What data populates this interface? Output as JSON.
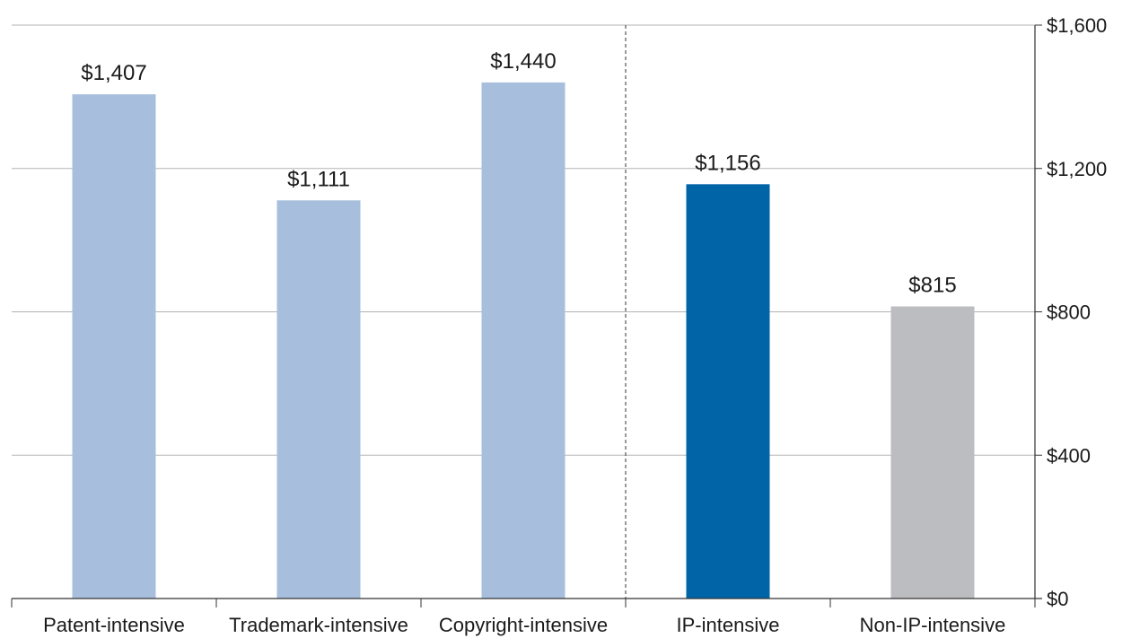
{
  "chart_data": {
    "type": "bar",
    "title": "",
    "xlabel": "",
    "ylabel": "",
    "categories": [
      "Patent-intensive",
      "Trademark-intensive",
      "Copyright-intensive",
      "IP-intensive",
      "Non-IP-intensive"
    ],
    "values": [
      1407,
      1111,
      1440,
      1156,
      815
    ],
    "data_labels": [
      "$1,407",
      "$1,111",
      "$1,440",
      "$1,156",
      "$815"
    ],
    "bar_colors": [
      "#a7bfdd",
      "#a7bfdd",
      "#a7bfdd",
      "#0064a6",
      "#bcbdc0"
    ],
    "ylim": [
      0,
      1600
    ],
    "y_ticks": [
      0,
      400,
      800,
      1200,
      1600
    ],
    "y_tick_labels": [
      "$0",
      "$400",
      "$800",
      "$1,200",
      "$1,600"
    ],
    "y_axis_side": "right",
    "grid": true,
    "divider_after_category": 3,
    "legend": "none"
  }
}
